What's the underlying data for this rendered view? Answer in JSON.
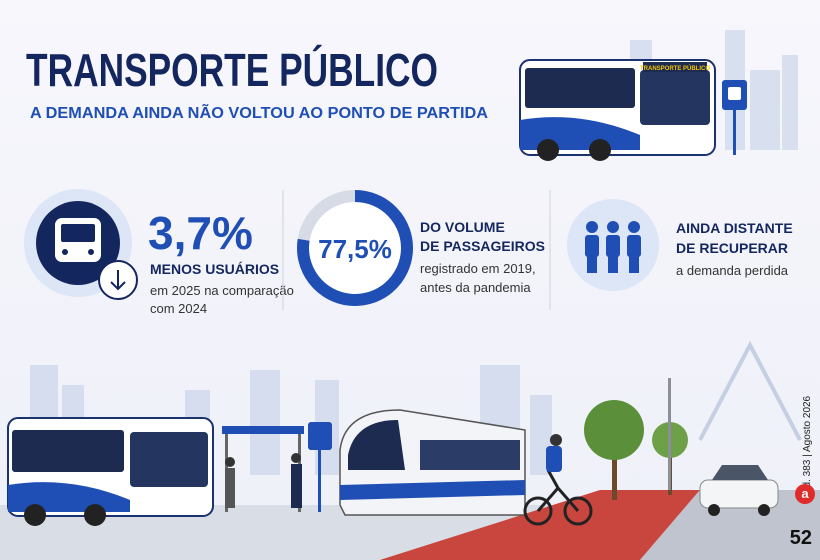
{
  "header": {
    "title": "TRANSPORTE PÚBLICO",
    "subtitle": "A DEMANDA AINDA NÃO VOLTOU AO PONTO DE PARTIDA"
  },
  "bus_sign": "TRANSPORTE PÚBLICO",
  "stats": [
    {
      "value": "3,7%",
      "label": [
        "MENOS USUÁRIOS"
      ],
      "detail": [
        "em 2025 na comparação",
        "com 2024"
      ]
    },
    {
      "ring": {
        "value": 77.5,
        "label": "77,5%"
      },
      "label": [
        "DO VOLUME",
        "DE PASSAGEIROS"
      ],
      "detail": [
        "registrado em 2019,",
        "antes da pandemia"
      ]
    },
    {
      "label": [
        "AINDA DISTANTE",
        "DE RECUPERAR"
      ],
      "detail": [
        "a demanda perdida"
      ]
    }
  ],
  "footer": {
    "edition": "Ed. 383 | Agosto 2026",
    "page": "52",
    "logo": "a"
  }
}
